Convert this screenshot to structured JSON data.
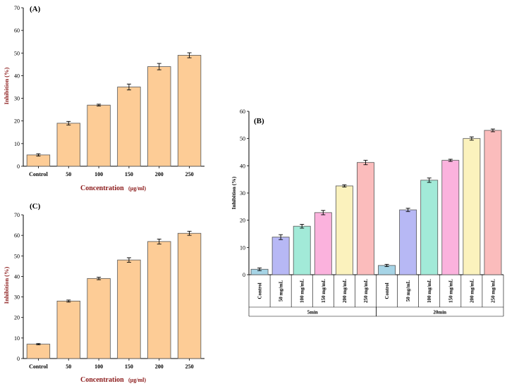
{
  "chart_data": [
    {
      "panel": "(A)",
      "type": "bar",
      "categories": [
        "Control",
        "50",
        "100",
        "150",
        "200",
        "250"
      ],
      "values": [
        5,
        19,
        27,
        35,
        44,
        49
      ],
      "errors": [
        0.5,
        0.8,
        0.4,
        1.3,
        1.4,
        1.1
      ],
      "ylabel": "Inhibition (%)",
      "xlabel": "Concentration",
      "xunit": "(µg/ml)",
      "ylim": [
        0,
        70
      ],
      "yticks": [
        0,
        10,
        20,
        30,
        40,
        50,
        60,
        70
      ],
      "bar_color": "#fdcc96"
    },
    {
      "panel": "(B)",
      "type": "bar",
      "categories": [
        "Control",
        "50 mg/mL",
        "100 mg/mL",
        "150 mg/mL",
        "200 mg/mL",
        "250 mg/mL",
        "Control",
        "50 mg/mL",
        "100 mg/mL",
        "150 mg/mL",
        "200 mg/mL",
        "250 mg/mL"
      ],
      "groups": [
        {
          "label": "5min",
          "count": 6
        },
        {
          "label": "20min",
          "count": 6
        }
      ],
      "values": [
        2,
        13.8,
        17.8,
        22.8,
        32.6,
        41.2,
        3.4,
        23.8,
        34.7,
        42,
        50,
        53
      ],
      "errors": [
        0.5,
        0.9,
        0.7,
        0.8,
        0.4,
        0.8,
        0.4,
        0.6,
        0.8,
        0.4,
        0.6,
        0.5
      ],
      "colors": [
        "#a6d4e6",
        "#b7b8f5",
        "#a2ead8",
        "#fbb2dd",
        "#fbf2bd",
        "#fbbcbc",
        "#a6d4e6",
        "#b7b8f5",
        "#a2ead8",
        "#fbb2dd",
        "#fbf2bd",
        "#fbbcbc"
      ],
      "ylabel": "Inhibition (%)",
      "ylim": [
        0,
        60
      ],
      "yticks": [
        0,
        10,
        20,
        30,
        40,
        50,
        60
      ]
    },
    {
      "panel": "(C)",
      "type": "bar",
      "categories": [
        "Control",
        "50",
        "100",
        "150",
        "200",
        "250"
      ],
      "values": [
        7,
        28,
        39,
        48,
        57,
        61
      ],
      "errors": [
        0.3,
        0.5,
        0.6,
        1.1,
        1.2,
        1.0
      ],
      "ylabel": "Inhibition (%)",
      "xlabel": "Concentration",
      "xunit": "(µg/ml)",
      "ylim": [
        0,
        70
      ],
      "yticks": [
        0,
        10,
        20,
        30,
        40,
        50,
        60,
        70
      ],
      "bar_color": "#fdcc96"
    }
  ]
}
